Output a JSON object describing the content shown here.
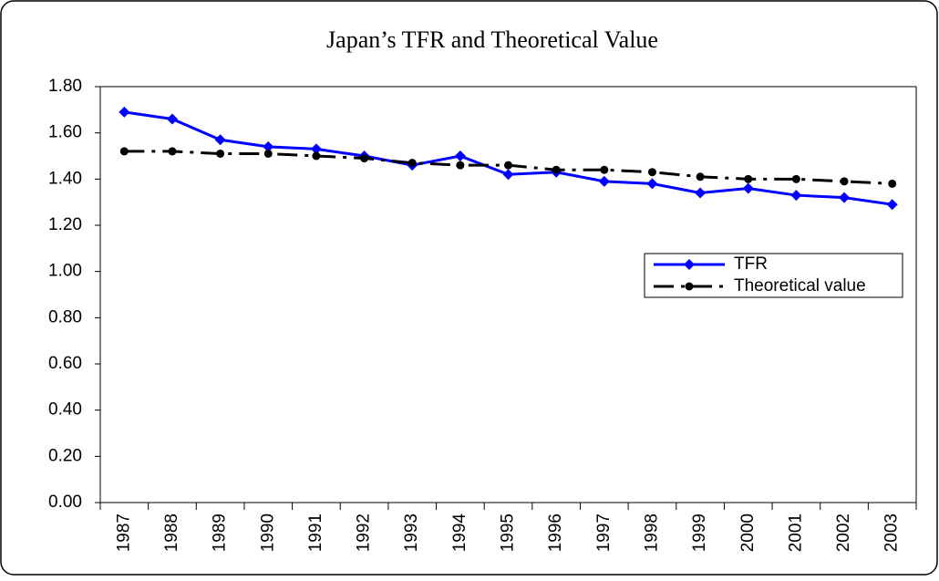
{
  "chart_data": {
    "type": "line",
    "title": "Japan’s TFR and Theoretical Value",
    "categories": [
      "1987",
      "1988",
      "1989",
      "1990",
      "1991",
      "1992",
      "1993",
      "1994",
      "1995",
      "1996",
      "1997",
      "1998",
      "1999",
      "2000",
      "2001",
      "2002",
      "2003"
    ],
    "series": [
      {
        "name": "TFR",
        "color": "#0000ff",
        "style": "solid",
        "marker": "diamond",
        "values": [
          1.69,
          1.66,
          1.57,
          1.54,
          1.53,
          1.5,
          1.46,
          1.5,
          1.42,
          1.43,
          1.39,
          1.38,
          1.34,
          1.36,
          1.33,
          1.32,
          1.29
        ]
      },
      {
        "name": "Theoretical value",
        "color": "#000000",
        "style": "dashdot",
        "marker": "circle",
        "values": [
          1.52,
          1.52,
          1.51,
          1.51,
          1.5,
          1.49,
          1.47,
          1.46,
          1.46,
          1.44,
          1.44,
          1.43,
          1.41,
          1.4,
          1.4,
          1.39,
          1.38
        ]
      }
    ],
    "ylim": [
      0,
      1.8
    ],
    "yticks": [
      {
        "value": 0,
        "label": "0.00"
      },
      {
        "value": 0.2,
        "label": "0.20"
      },
      {
        "value": 0.4,
        "label": "0.40"
      },
      {
        "value": 0.6,
        "label": "0.60"
      },
      {
        "value": 0.8,
        "label": "0.80"
      },
      {
        "value": 1.0,
        "label": "1.00"
      },
      {
        "value": 1.2,
        "label": "1.20"
      },
      {
        "value": 1.4,
        "label": "1.40"
      },
      {
        "value": 1.6,
        "label": "1.60"
      },
      {
        "value": 1.8,
        "label": "1.80"
      }
    ],
    "grid": false,
    "legend": "right"
  }
}
